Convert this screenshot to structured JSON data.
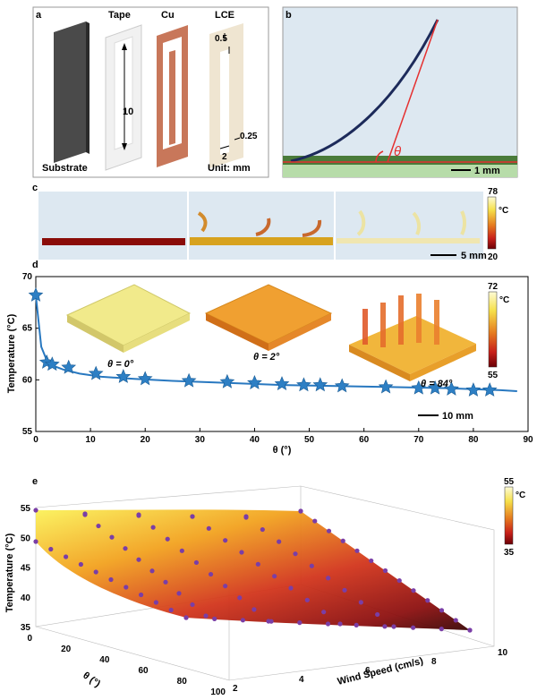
{
  "panels": {
    "a": "a",
    "b": "b",
    "c": "c",
    "d": "d",
    "e": "e"
  },
  "panel_a": {
    "labels": {
      "substrate": "Substrate",
      "tape": "Tape",
      "cu": "Cu",
      "lce": "LCE"
    },
    "dims": {
      "length": "10",
      "gap": "0.5",
      "width": "2",
      "thickness": "0.25"
    },
    "unit": "Unit: mm"
  },
  "panel_b": {
    "angle_symbol": "θ",
    "scale": "1 mm"
  },
  "panel_c": {
    "colorbar_max": "78",
    "colorbar_min": "20",
    "colorbar_unit": "°C",
    "scale": "5 mm"
  },
  "panel_d": {
    "insets": [
      {
        "label": "θ = 0°"
      },
      {
        "label": "θ = 2°"
      },
      {
        "label": "θ = 84°"
      }
    ],
    "colorbar_max": "72",
    "colorbar_min": "55",
    "colorbar_unit": "°C",
    "scale": "10 mm"
  },
  "chart_data": [
    {
      "type": "line",
      "xlabel": "θ (°)",
      "ylabel": "Temperature (°C)",
      "xlim": [
        0,
        90
      ],
      "ylim": [
        55,
        70
      ],
      "xticks": [
        0,
        10,
        20,
        30,
        40,
        50,
        60,
        70,
        80,
        90
      ],
      "yticks": [
        55,
        60,
        65,
        70
      ],
      "series": [
        {
          "x": [
            0,
            2,
            3,
            6,
            11,
            16,
            20,
            28,
            35,
            40,
            45,
            49,
            52,
            56,
            64,
            70,
            73,
            76,
            80,
            83
          ],
          "y": [
            68.2,
            61.7,
            61.5,
            61.2,
            60.6,
            60.3,
            60.1,
            59.9,
            59.8,
            59.7,
            59.6,
            59.5,
            59.5,
            59.4,
            59.3,
            59.2,
            59.2,
            59.1,
            59.0,
            59.0
          ]
        }
      ],
      "fit_x": [
        0,
        1,
        2,
        3,
        5,
        8,
        12,
        18,
        25,
        35,
        45,
        55,
        65,
        75,
        85,
        88
      ],
      "fit_y": [
        68.2,
        63.2,
        61.9,
        61.4,
        61.0,
        60.6,
        60.3,
        60.1,
        59.9,
        59.7,
        59.5,
        59.4,
        59.3,
        59.2,
        59.0,
        58.9
      ]
    },
    {
      "type": "surface",
      "zlabel": "Temperature (°C)",
      "xlabel": "θ (°)",
      "ylabel": "Wind Speed (cm/s)",
      "zlim": [
        35,
        55
      ],
      "zticks": [
        35,
        40,
        45,
        50,
        55
      ],
      "theta_ticks": [
        0,
        20,
        40,
        60,
        80,
        100
      ],
      "wind_ticks": [
        2,
        4,
        6,
        8,
        10
      ],
      "colorbar_max": "55",
      "colorbar_min": "35",
      "colorbar_unit": "°C"
    }
  ]
}
